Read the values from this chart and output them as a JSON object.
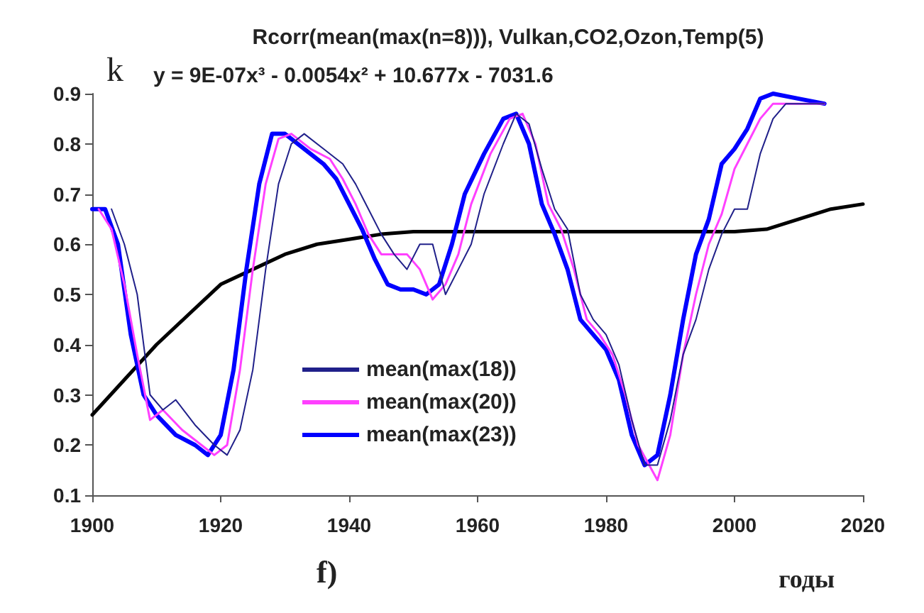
{
  "chart_data": {
    "type": "line",
    "title": "Rcorr(mean(max(n=8))), Vulkan,CO2,Ozon,Temp(5)",
    "ylabel": "k",
    "xlabel": "годы",
    "annotations": [
      "y = 9E-07x³ - 0.0054x² + 10.677x - 7031.6",
      "f)"
    ],
    "xlim": [
      1900,
      2020
    ],
    "xticks": [
      1900,
      1920,
      1940,
      1960,
      1980,
      2000,
      2020
    ],
    "ylim": [
      0.1,
      0.9
    ],
    "yticks": [
      0.1,
      0.2,
      0.3,
      0.4,
      0.5,
      0.6,
      0.7,
      0.8,
      0.9
    ],
    "grid": false,
    "legend": "bottom left",
    "marker": "none",
    "line_style": "solid",
    "series": [
      {
        "name": "mean(max(18))",
        "color": "#20208a",
        "x": [
          1903,
          1905,
          1907,
          1909,
          1911,
          1913,
          1916,
          1919,
          1921,
          1923,
          1925,
          1927,
          1929,
          1931,
          1933,
          1936,
          1939,
          1941,
          1943,
          1945,
          1947,
          1949,
          1951,
          1953,
          1955,
          1957,
          1959,
          1961,
          1964,
          1966,
          1968,
          1970,
          1972,
          1974,
          1976,
          1978,
          1980,
          1982,
          1984,
          1986,
          1988,
          1990,
          1992,
          1994,
          1996,
          1998,
          2000,
          2002,
          2004,
          2006,
          2008,
          2010,
          2014
        ],
        "values": [
          0.67,
          0.6,
          0.5,
          0.3,
          0.27,
          0.29,
          0.24,
          0.2,
          0.18,
          0.23,
          0.35,
          0.55,
          0.72,
          0.8,
          0.82,
          0.79,
          0.76,
          0.72,
          0.67,
          0.62,
          0.58,
          0.55,
          0.6,
          0.6,
          0.5,
          0.55,
          0.6,
          0.7,
          0.8,
          0.86,
          0.84,
          0.75,
          0.67,
          0.63,
          0.5,
          0.45,
          0.42,
          0.36,
          0.25,
          0.16,
          0.16,
          0.25,
          0.38,
          0.45,
          0.55,
          0.62,
          0.67,
          0.67,
          0.78,
          0.85,
          0.88,
          0.88,
          0.88
        ]
      },
      {
        "name": "mean(max(20))",
        "color": "#ff40ff",
        "x": [
          1901,
          1903,
          1905,
          1907,
          1909,
          1911,
          1914,
          1917,
          1919,
          1921,
          1923,
          1925,
          1927,
          1929,
          1931,
          1934,
          1937,
          1939,
          1941,
          1943,
          1945,
          1947,
          1949,
          1951,
          1953,
          1955,
          1957,
          1959,
          1962,
          1965,
          1967,
          1969,
          1971,
          1973,
          1975,
          1977,
          1979,
          1981,
          1983,
          1985,
          1988,
          1990,
          1992,
          1994,
          1996,
          1998,
          2000,
          2002,
          2004,
          2006,
          2008,
          2010,
          2014
        ],
        "values": [
          0.67,
          0.63,
          0.52,
          0.38,
          0.25,
          0.27,
          0.23,
          0.2,
          0.18,
          0.2,
          0.35,
          0.55,
          0.72,
          0.81,
          0.82,
          0.79,
          0.77,
          0.73,
          0.68,
          0.62,
          0.58,
          0.58,
          0.58,
          0.55,
          0.49,
          0.52,
          0.58,
          0.68,
          0.78,
          0.85,
          0.86,
          0.8,
          0.68,
          0.63,
          0.55,
          0.45,
          0.42,
          0.38,
          0.3,
          0.2,
          0.13,
          0.22,
          0.38,
          0.5,
          0.6,
          0.66,
          0.75,
          0.8,
          0.85,
          0.88,
          0.88,
          0.88,
          0.88
        ]
      },
      {
        "name": "mean(max(23))",
        "color": "#0000ff",
        "x": [
          1900,
          1902,
          1904,
          1906,
          1908,
          1910,
          1913,
          1916,
          1918,
          1920,
          1922,
          1924,
          1926,
          1928,
          1930,
          1933,
          1936,
          1938,
          1940,
          1942,
          1944,
          1946,
          1948,
          1950,
          1952,
          1954,
          1956,
          1958,
          1961,
          1964,
          1966,
          1968,
          1970,
          1972,
          1974,
          1976,
          1978,
          1980,
          1982,
          1984,
          1986,
          1988,
          1990,
          1992,
          1994,
          1996,
          1998,
          2000,
          2002,
          2004,
          2006,
          2010,
          2014
        ],
        "values": [
          0.67,
          0.67,
          0.6,
          0.42,
          0.3,
          0.26,
          0.22,
          0.2,
          0.18,
          0.22,
          0.35,
          0.55,
          0.72,
          0.82,
          0.82,
          0.79,
          0.76,
          0.73,
          0.68,
          0.63,
          0.57,
          0.52,
          0.51,
          0.51,
          0.5,
          0.52,
          0.6,
          0.7,
          0.78,
          0.85,
          0.86,
          0.8,
          0.68,
          0.62,
          0.55,
          0.45,
          0.42,
          0.39,
          0.33,
          0.22,
          0.16,
          0.18,
          0.3,
          0.45,
          0.58,
          0.65,
          0.76,
          0.79,
          0.83,
          0.89,
          0.9,
          0.89,
          0.88
        ]
      },
      {
        "color": "#000000",
        "x": [
          1900,
          1905,
          1910,
          1915,
          1920,
          1925,
          1930,
          1935,
          1940,
          1945,
          1950,
          1960,
          1980,
          2000,
          2005,
          2010,
          2015,
          2020
        ],
        "values": [
          0.26,
          0.33,
          0.4,
          0.46,
          0.52,
          0.55,
          0.58,
          0.6,
          0.61,
          0.62,
          0.625,
          0.625,
          0.625,
          0.625,
          0.63,
          0.65,
          0.67,
          0.68
        ]
      }
    ]
  }
}
